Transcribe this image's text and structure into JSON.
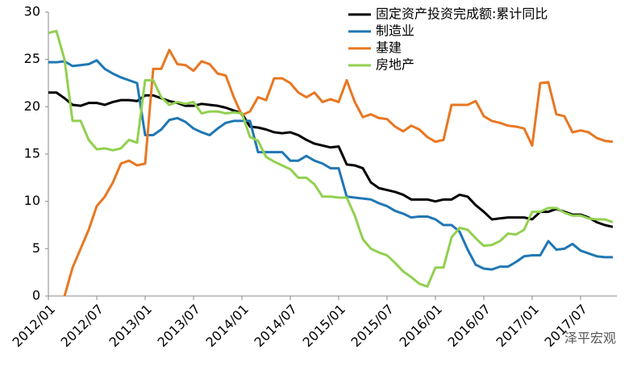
{
  "chart_data": {
    "type": "line",
    "categories": [
      "2012/01",
      null,
      null,
      null,
      null,
      null,
      "2012/07",
      null,
      null,
      null,
      null,
      null,
      "2013/01",
      null,
      null,
      null,
      null,
      null,
      "2013/07",
      null,
      null,
      null,
      null,
      null,
      "2014/01",
      null,
      null,
      null,
      null,
      null,
      "2014/07",
      null,
      null,
      null,
      null,
      null,
      "2015/01",
      null,
      null,
      null,
      null,
      null,
      "2015/07",
      null,
      null,
      null,
      null,
      null,
      "2016/01",
      null,
      null,
      null,
      null,
      null,
      "2016/07",
      null,
      null,
      null,
      null,
      null,
      "2017/01",
      null,
      null,
      null,
      null,
      null,
      "2017/07",
      null,
      null,
      null,
      null
    ],
    "series": [
      {
        "name": "固定资产投资完成额:累计同比",
        "color": "#000000",
        "values": [
          21.5,
          21.5,
          20.9,
          20.2,
          20.1,
          20.4,
          20.4,
          20.2,
          20.5,
          20.7,
          20.7,
          20.6,
          21.2,
          21.2,
          20.9,
          20.6,
          20.4,
          20.1,
          20.1,
          20.3,
          20.2,
          20.1,
          19.9,
          19.6,
          19.3,
          17.9,
          17.8,
          17.6,
          17.3,
          17.2,
          17.3,
          17.0,
          16.5,
          16.1,
          15.9,
          15.7,
          15.8,
          13.9,
          13.8,
          13.5,
          12.0,
          11.4,
          11.2,
          11.0,
          10.7,
          10.2,
          10.2,
          10.2,
          10.0,
          10.2,
          10.2,
          10.7,
          10.5,
          9.6,
          8.9,
          8.1,
          8.2,
          8.3,
          8.3,
          8.3,
          8.1,
          8.9,
          8.9,
          9.2,
          8.9,
          8.6,
          8.6,
          8.3,
          7.8,
          7.5,
          7.3
        ]
      },
      {
        "name": "制造业",
        "color": "#1f77b4",
        "values": [
          24.7,
          24.7,
          24.8,
          24.3,
          24.4,
          24.5,
          24.9,
          24.0,
          23.5,
          23.1,
          22.8,
          22.5,
          17.0,
          17.0,
          17.6,
          18.6,
          18.8,
          18.4,
          17.7,
          17.3,
          17.0,
          17.7,
          18.3,
          18.5,
          18.5,
          18.5,
          15.2,
          15.2,
          15.2,
          15.2,
          14.3,
          14.3,
          14.8,
          14.3,
          14.0,
          13.5,
          13.5,
          10.5,
          10.4,
          10.3,
          10.2,
          9.8,
          9.5,
          9.0,
          8.7,
          8.3,
          8.4,
          8.4,
          8.1,
          7.5,
          7.5,
          6.8,
          4.9,
          3.3,
          2.9,
          2.8,
          3.1,
          3.1,
          3.6,
          4.2,
          4.3,
          4.3,
          5.8,
          4.9,
          5.0,
          5.5,
          4.8,
          4.5,
          4.2,
          4.1,
          4.1
        ]
      },
      {
        "name": "基建",
        "color": "#e87722",
        "values": [
          null,
          null,
          0,
          3,
          5,
          7,
          9.5,
          10.5,
          12,
          14,
          14.3,
          13.8,
          14,
          24,
          24,
          26,
          24.5,
          24.4,
          23.8,
          24.8,
          24.5,
          23.5,
          23.3,
          21,
          19.1,
          19.5,
          21,
          20.7,
          23,
          23,
          22.5,
          21.5,
          21,
          21.5,
          20.5,
          20.8,
          20.5,
          22.8,
          20.5,
          18.9,
          19.2,
          18.8,
          18.7,
          17.9,
          17.4,
          18,
          17.6,
          16.8,
          16.3,
          16.5,
          20.2,
          20.2,
          20.2,
          20.6,
          19,
          18.5,
          18.3,
          18,
          17.9,
          17.7,
          15.9,
          22.5,
          22.6,
          19.2,
          19.0,
          17.3,
          17.5,
          17.3,
          16.7,
          16.4,
          16.3
        ]
      },
      {
        "name": "房地产",
        "color": "#92d050",
        "values": [
          27.8,
          28.0,
          25,
          18.5,
          18.5,
          16.5,
          15.5,
          15.6,
          15.4,
          15.6,
          16.5,
          16.2,
          22.8,
          22.8,
          21,
          20.2,
          20.5,
          20.3,
          20.5,
          19.3,
          19.5,
          19.5,
          19.3,
          19.4,
          19.3,
          16.8,
          16.4,
          14.7,
          14.2,
          13.8,
          13.4,
          12.5,
          12.5,
          11.8,
          10.5,
          10.5,
          10.4,
          10.4,
          8.5,
          6,
          5,
          4.6,
          4.3,
          3.5,
          2.6,
          2,
          1.3,
          1.0,
          3.0,
          3.0,
          6.2,
          7.2,
          7.0,
          6.1,
          5.3,
          5.4,
          5.8,
          6.6,
          6.5,
          7.0,
          8.9,
          8.9,
          9.3,
          9.3,
          8.8,
          8.5,
          8.5,
          8.2,
          8.1,
          8.1,
          7.8
        ]
      }
    ],
    "ylim": [
      0,
      30
    ],
    "yticks": [
      0,
      5,
      10,
      15,
      20,
      25,
      30
    ],
    "grid": false,
    "legend": "upper right",
    "watermark": "泽平宏观"
  }
}
